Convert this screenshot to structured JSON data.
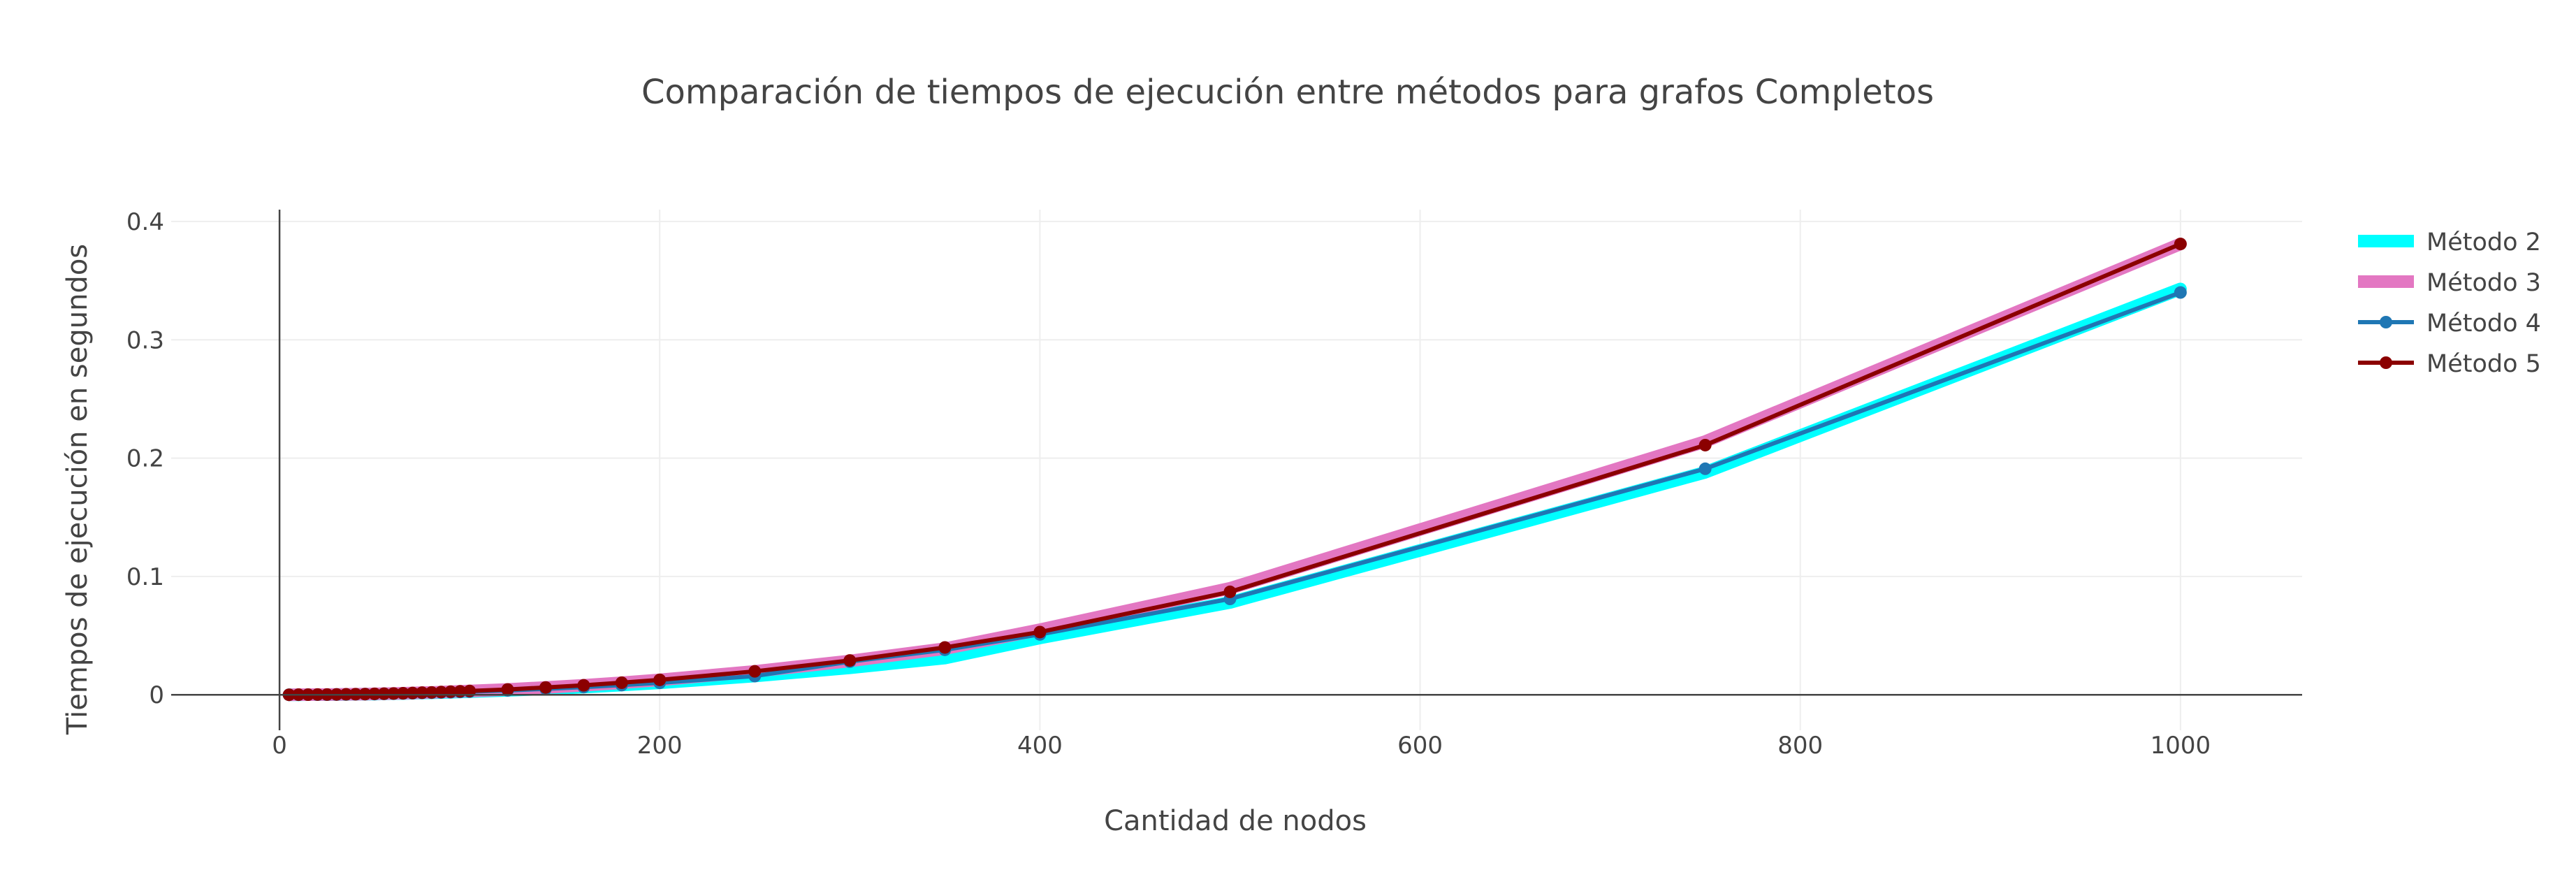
{
  "chart_data": {
    "type": "line",
    "title": "Comparación de tiempos de ejecución entre métodos para grafos Completos",
    "xlabel": "Cantidad de nodos",
    "ylabel": "Tiempos de ejecución en segundos",
    "xlim": [
      -57,
      1064
    ],
    "ylim": [
      -0.03,
      0.41
    ],
    "xticks": [
      0,
      200,
      400,
      600,
      800,
      1000
    ],
    "yticks": [
      0,
      0.1,
      0.2,
      0.3,
      0.4
    ],
    "xtick_labels": [
      "0",
      "200",
      "400",
      "600",
      "800",
      "1000"
    ],
    "ytick_labels": [
      "0",
      "0.1",
      "0.2",
      "0.3",
      "0.4"
    ],
    "grid": true,
    "legend_position": "top-right",
    "x": [
      5,
      10,
      15,
      20,
      25,
      30,
      35,
      40,
      45,
      50,
      55,
      60,
      65,
      70,
      75,
      80,
      85,
      90,
      95,
      100,
      120,
      140,
      160,
      180,
      200,
      250,
      300,
      350,
      400,
      500,
      750,
      1000
    ],
    "series": [
      {
        "name": "Método 2",
        "color": "#00ffff",
        "style": "thick-line",
        "values": [
          0,
          0,
          0.0001,
          0.0001,
          0.0001,
          0.0002,
          0.0003,
          0.0004,
          0.0005,
          0.0006,
          0.0008,
          0.0009,
          0.0011,
          0.0013,
          0.0015,
          0.0017,
          0.0019,
          0.0021,
          0.0024,
          0.0026,
          0.0037,
          0.005,
          0.0065,
          0.0082,
          0.0101,
          0.0158,
          0.0228,
          0.031,
          0.048,
          0.078,
          0.188,
          0.343
        ]
      },
      {
        "name": "Método 3",
        "color": "#e377c2",
        "style": "thick-line",
        "values": [
          0,
          0.0001,
          0.0001,
          0.0002,
          0.0002,
          0.0003,
          0.0004,
          0.0005,
          0.0006,
          0.0008,
          0.0009,
          0.0011,
          0.0013,
          0.0015,
          0.0018,
          0.002,
          0.0023,
          0.0026,
          0.0029,
          0.0032,
          0.0045,
          0.0062,
          0.008,
          0.0102,
          0.0126,
          0.0198,
          0.0286,
          0.039,
          0.055,
          0.09,
          0.214,
          0.381
        ]
      },
      {
        "name": "Método 4",
        "color": "#1f77b4",
        "style": "line-markers",
        "values": [
          0,
          0,
          0.0001,
          0.0001,
          0.0001,
          0.0002,
          0.0003,
          0.0004,
          0.0005,
          0.0006,
          0.0008,
          0.0009,
          0.0011,
          0.0013,
          0.0015,
          0.0017,
          0.0019,
          0.0021,
          0.0024,
          0.0026,
          0.0037,
          0.005,
          0.0065,
          0.0082,
          0.0101,
          0.0158,
          0.028,
          0.038,
          0.051,
          0.081,
          0.191,
          0.34
        ]
      },
      {
        "name": "Método 5",
        "color": "#8b0000",
        "style": "line-markers",
        "values": [
          0,
          0.0001,
          0.0001,
          0.0002,
          0.0002,
          0.0003,
          0.0004,
          0.0005,
          0.0006,
          0.0008,
          0.0009,
          0.0011,
          0.0013,
          0.0015,
          0.0018,
          0.002,
          0.0023,
          0.0026,
          0.0029,
          0.0032,
          0.0045,
          0.0062,
          0.008,
          0.0102,
          0.0126,
          0.0198,
          0.029,
          0.04,
          0.053,
          0.087,
          0.211,
          0.381
        ]
      }
    ]
  }
}
